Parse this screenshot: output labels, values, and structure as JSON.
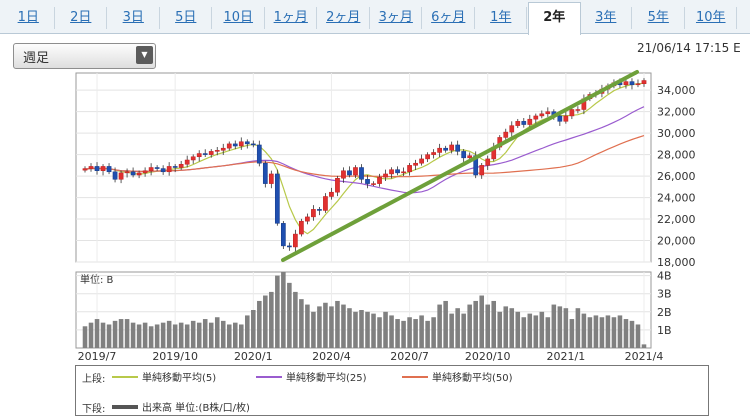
{
  "tabs": [
    {
      "label": "1日",
      "active": false
    },
    {
      "label": "2日",
      "active": false
    },
    {
      "label": "3日",
      "active": false
    },
    {
      "label": "5日",
      "active": false
    },
    {
      "label": "10日",
      "active": false
    },
    {
      "label": "1ヶ月",
      "active": false
    },
    {
      "label": "2ヶ月",
      "active": false
    },
    {
      "label": "3ヶ月",
      "active": false
    },
    {
      "label": "6ヶ月",
      "active": false
    },
    {
      "label": "1年",
      "active": false
    },
    {
      "label": "2年",
      "active": true
    },
    {
      "label": "3年",
      "active": false
    },
    {
      "label": "5年",
      "active": false
    },
    {
      "label": "10年",
      "active": false
    }
  ],
  "selector": {
    "value": "週足"
  },
  "timestamp": "21/06/14 17:15 E",
  "legend": {
    "upper_label": "上段:",
    "lower_label": "下段:",
    "items": [
      {
        "name": "単純移動平均(5)",
        "color": "#b8c94a"
      },
      {
        "name": "単純移動平均(25)",
        "color": "#9a5ccf"
      },
      {
        "name": "単純移動平均(50)",
        "color": "#e07050"
      }
    ],
    "volume_item": {
      "name": "出来高 単位:(B株/口/枚)",
      "color": "#555555"
    }
  },
  "chart_data": {
    "type": "candlestick",
    "x_ticks": [
      "2019/7",
      "2019/10",
      "2020/1",
      "2020/4",
      "2020/7",
      "2020/10",
      "2021/1",
      "2021/4"
    ],
    "price_axis": {
      "ticks": [
        "34,000",
        "32,000",
        "30,000",
        "28,000",
        "26,000",
        "24,000",
        "22,000",
        "20,000",
        "18,000"
      ],
      "ylim": [
        18000,
        35600
      ]
    },
    "volume_axis": {
      "label": "単位: B",
      "ticks": [
        "4B",
        "3B",
        "2B",
        "1B"
      ],
      "ylim": [
        0,
        4.2
      ]
    },
    "close": [
      26700,
      26900,
      26500,
      26900,
      26400,
      25700,
      26300,
      26400,
      26100,
      26300,
      26500,
      26800,
      26700,
      26400,
      26900,
      26800,
      27100,
      27500,
      27800,
      28100,
      28000,
      28300,
      28400,
      28600,
      29000,
      28800,
      29200,
      29000,
      28900,
      27200,
      25300,
      26200,
      21600,
      19500,
      19400,
      20600,
      21800,
      22200,
      22900,
      22800,
      24100,
      24500,
      25800,
      26500,
      26100,
      26800,
      25700,
      25300,
      25300,
      25900,
      26200,
      26600,
      26300,
      26400,
      27000,
      27200,
      27600,
      28000,
      28200,
      28600,
      28400,
      28900,
      28300,
      27700,
      27900,
      26100,
      27000,
      27600,
      28700,
      29600,
      30100,
      30700,
      31100,
      30800,
      31300,
      31600,
      31800,
      32000,
      31600,
      31100,
      31600,
      32200,
      32200,
      33200,
      33600,
      33700,
      34100,
      34400,
      34700,
      34500,
      34800,
      34500,
      34600,
      34900
    ],
    "volume": [
      1.2,
      1.4,
      1.6,
      1.4,
      1.3,
      1.5,
      1.6,
      1.6,
      1.4,
      1.3,
      1.4,
      1.2,
      1.3,
      1.4,
      1.5,
      1.3,
      1.4,
      1.3,
      1.5,
      1.4,
      1.6,
      1.4,
      1.7,
      1.5,
      1.3,
      1.4,
      1.3,
      1.8,
      2.1,
      2.6,
      2.9,
      3.1,
      4.0,
      4.2,
      3.6,
      3.1,
      2.7,
      2.4,
      2.0,
      2.3,
      2.5,
      2.3,
      2.6,
      2.4,
      2.2,
      2.0,
      2.1,
      2.0,
      1.9,
      1.7,
      2.0,
      1.8,
      1.6,
      1.5,
      1.7,
      1.6,
      1.8,
      1.5,
      1.7,
      2.4,
      2.6,
      1.9,
      2.2,
      1.9,
      2.4,
      2.6,
      2.9,
      2.4,
      2.6,
      2.0,
      2.3,
      2.2,
      2.0,
      1.7,
      1.9,
      1.8,
      2.0,
      1.7,
      2.4,
      2.3,
      2.2,
      1.6,
      2.2,
      1.9,
      1.7,
      1.8,
      1.7,
      1.8,
      1.7,
      1.8,
      1.6,
      1.5,
      1.3,
      0.2
    ]
  }
}
